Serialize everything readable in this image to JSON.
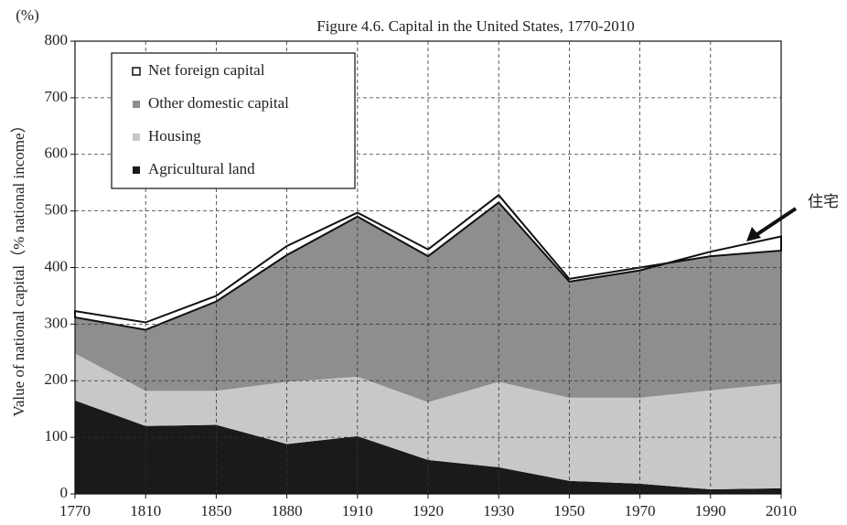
{
  "chart_data": {
    "type": "stacked_area",
    "title": "Figure 4.6. Capital in the United States, 1770-2010",
    "y_unit": "(%)",
    "y_label": "Value of national capital（% national income）",
    "annotation": "住宅",
    "categories": [
      "1770",
      "1810",
      "1850",
      "1880",
      "1910",
      "1920",
      "1930",
      "1950",
      "1970",
      "1990",
      "2010"
    ],
    "series": [
      {
        "name": "Agricultural land",
        "color": "#1a1a1a",
        "values": [
          165,
          120,
          122,
          88,
          102,
          60,
          47,
          23,
          18,
          8,
          10
        ]
      },
      {
        "name": "Housing",
        "color": "#c8c8c8",
        "values": [
          83,
          62,
          60,
          110,
          105,
          102,
          151,
          147,
          152,
          175,
          185
        ]
      },
      {
        "name": "Other domestic capital",
        "color": "#8e8e8e",
        "values": [
          64,
          108,
          158,
          224,
          283,
          258,
          317,
          205,
          225,
          245,
          260
        ]
      },
      {
        "name": "Net foreign capital",
        "color": "#ffffff",
        "values": [
          11,
          13,
          10,
          16,
          7,
          12,
          13,
          5,
          5,
          -8,
          -25
        ]
      }
    ],
    "ylim": [
      0,
      800
    ],
    "yticks": [
      0,
      100,
      200,
      300,
      400,
      500,
      600,
      700,
      800
    ],
    "grid": true
  }
}
